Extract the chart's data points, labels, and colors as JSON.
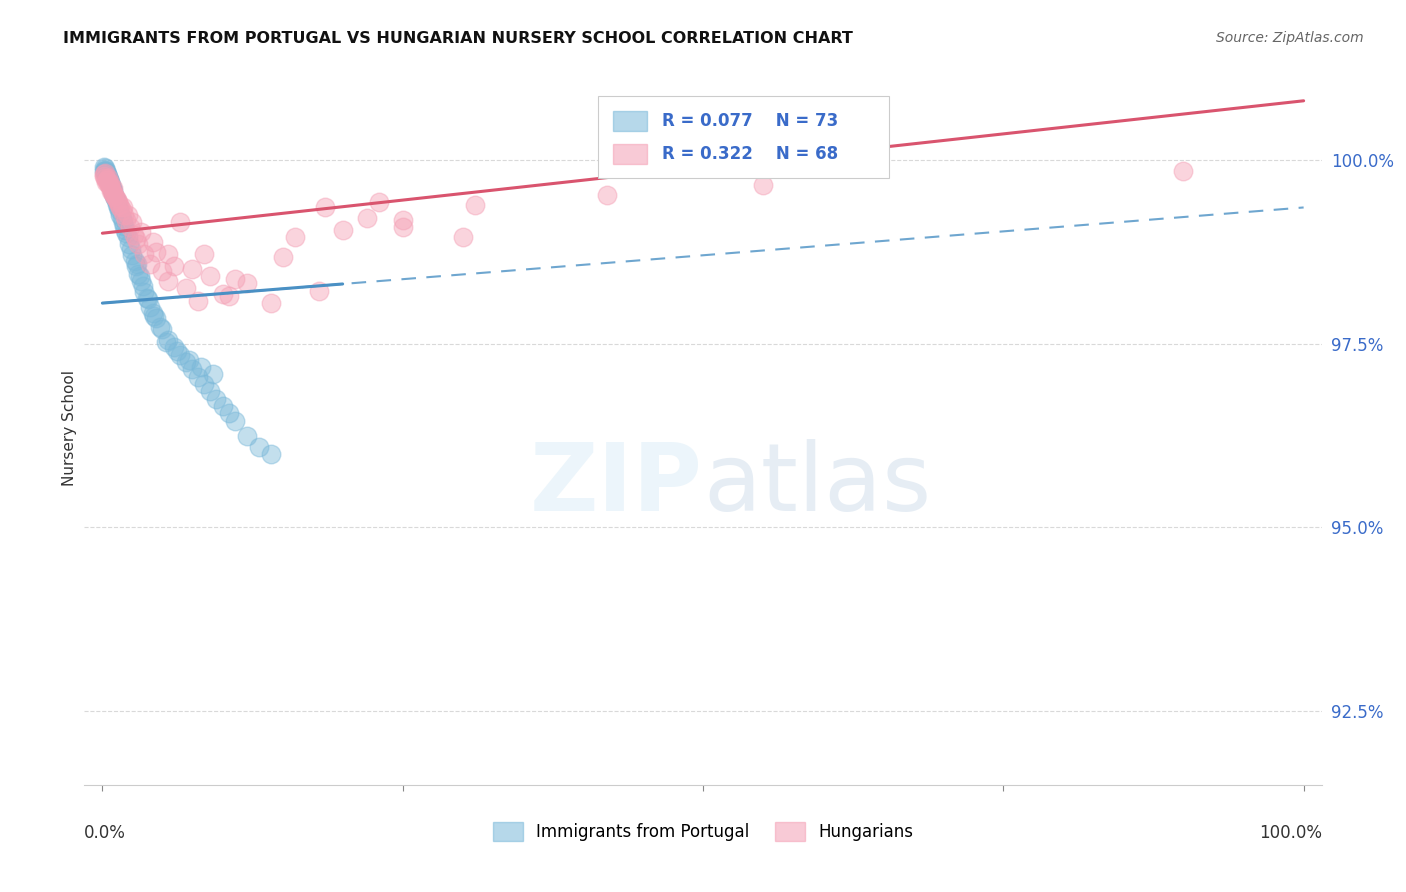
{
  "title": "IMMIGRANTS FROM PORTUGAL VS HUNGARIAN NURSERY SCHOOL CORRELATION CHART",
  "source": "Source: ZipAtlas.com",
  "ylabel": "Nursery School",
  "ytick_labels": [
    "92.5%",
    "95.0%",
    "97.5%",
    "100.0%"
  ],
  "ytick_values": [
    92.5,
    95.0,
    97.5,
    100.0
  ],
  "ymin": 91.5,
  "ymax": 101.2,
  "xmin": -1.5,
  "xmax": 101.5,
  "legend_blue_r": "R = 0.077",
  "legend_blue_n": "N = 73",
  "legend_pink_r": "R = 0.322",
  "legend_pink_n": "N = 68",
  "legend_blue_label": "Immigrants from Portugal",
  "legend_pink_label": "Hungarians",
  "color_blue": "#7ab8d9",
  "color_pink": "#f4a0b5",
  "trendline_blue": "#4a90c4",
  "trendline_pink": "#d9546e",
  "grid_color": "#d0d0d0",
  "blue_slope": 0.013,
  "blue_intercept": 98.05,
  "pink_slope": 0.018,
  "pink_intercept": 99.0,
  "blue_x": [
    0.1,
    0.15,
    0.2,
    0.25,
    0.3,
    0.35,
    0.4,
    0.5,
    0.55,
    0.6,
    0.7,
    0.8,
    0.9,
    1.0,
    1.1,
    1.2,
    1.3,
    1.5,
    1.6,
    1.8,
    2.0,
    2.2,
    2.5,
    2.8,
    3.0,
    3.2,
    3.5,
    3.8,
    4.0,
    4.5,
    5.0,
    5.5,
    6.0,
    6.5,
    7.0,
    7.5,
    8.0,
    8.5,
    9.0,
    9.5,
    10.0,
    10.5,
    11.0,
    12.0,
    13.0,
    14.0,
    0.45,
    0.65,
    0.85,
    1.05,
    1.4,
    1.7,
    2.1,
    2.4,
    2.7,
    3.1,
    3.4,
    3.7,
    4.2,
    4.8,
    5.3,
    6.2,
    7.2,
    8.2,
    9.2,
    0.18,
    0.28,
    0.38,
    0.58,
    0.78,
    1.9,
    2.9,
    4.3
  ],
  "blue_y": [
    99.9,
    99.85,
    99.88,
    99.83,
    99.82,
    99.8,
    99.78,
    99.75,
    99.72,
    99.7,
    99.65,
    99.6,
    99.55,
    99.5,
    99.45,
    99.4,
    99.35,
    99.25,
    99.2,
    99.1,
    99.0,
    98.85,
    98.7,
    98.55,
    98.45,
    98.35,
    98.2,
    98.1,
    98.0,
    97.85,
    97.7,
    97.55,
    97.45,
    97.35,
    97.25,
    97.15,
    97.05,
    96.95,
    96.85,
    96.75,
    96.65,
    96.55,
    96.45,
    96.25,
    96.1,
    96.0,
    99.76,
    99.68,
    99.58,
    99.48,
    99.32,
    99.15,
    98.95,
    98.78,
    98.62,
    98.42,
    98.28,
    98.12,
    97.92,
    97.72,
    97.52,
    97.4,
    97.28,
    97.18,
    97.08,
    99.86,
    99.84,
    99.81,
    99.74,
    99.62,
    99.05,
    98.58,
    97.88
  ],
  "pink_x": [
    0.1,
    0.2,
    0.3,
    0.4,
    0.5,
    0.6,
    0.7,
    0.8,
    0.9,
    1.0,
    1.1,
    1.2,
    1.4,
    1.6,
    1.8,
    2.0,
    2.3,
    2.6,
    3.0,
    3.5,
    4.0,
    4.5,
    5.0,
    5.5,
    6.0,
    7.0,
    8.0,
    9.0,
    10.0,
    12.0,
    14.0,
    16.0,
    18.0,
    20.0,
    25.0,
    30.0,
    0.15,
    0.35,
    0.55,
    0.75,
    0.95,
    1.3,
    1.7,
    2.1,
    2.5,
    3.2,
    4.2,
    5.5,
    7.5,
    10.5,
    0.25,
    0.45,
    0.65,
    0.85,
    1.5,
    2.8,
    6.5,
    11.0,
    22.0,
    15.0,
    18.5,
    23.0,
    31.0,
    42.0,
    55.0,
    90.0,
    25.0,
    8.5
  ],
  "pink_y": [
    99.8,
    99.75,
    99.7,
    99.72,
    99.68,
    99.65,
    99.62,
    99.58,
    99.55,
    99.52,
    99.48,
    99.45,
    99.38,
    99.32,
    99.25,
    99.18,
    99.08,
    98.98,
    98.85,
    98.72,
    98.58,
    98.75,
    98.48,
    98.35,
    98.55,
    98.25,
    98.08,
    98.42,
    98.18,
    98.32,
    98.05,
    98.95,
    98.22,
    99.05,
    99.18,
    98.95,
    99.78,
    99.72,
    99.65,
    99.58,
    99.5,
    99.42,
    99.35,
    99.25,
    99.15,
    99.02,
    98.88,
    98.72,
    98.52,
    98.15,
    99.82,
    99.75,
    99.68,
    99.62,
    99.35,
    98.92,
    99.15,
    98.38,
    99.2,
    98.68,
    99.35,
    99.42,
    99.38,
    99.52,
    99.65,
    99.85,
    99.08,
    98.72
  ]
}
